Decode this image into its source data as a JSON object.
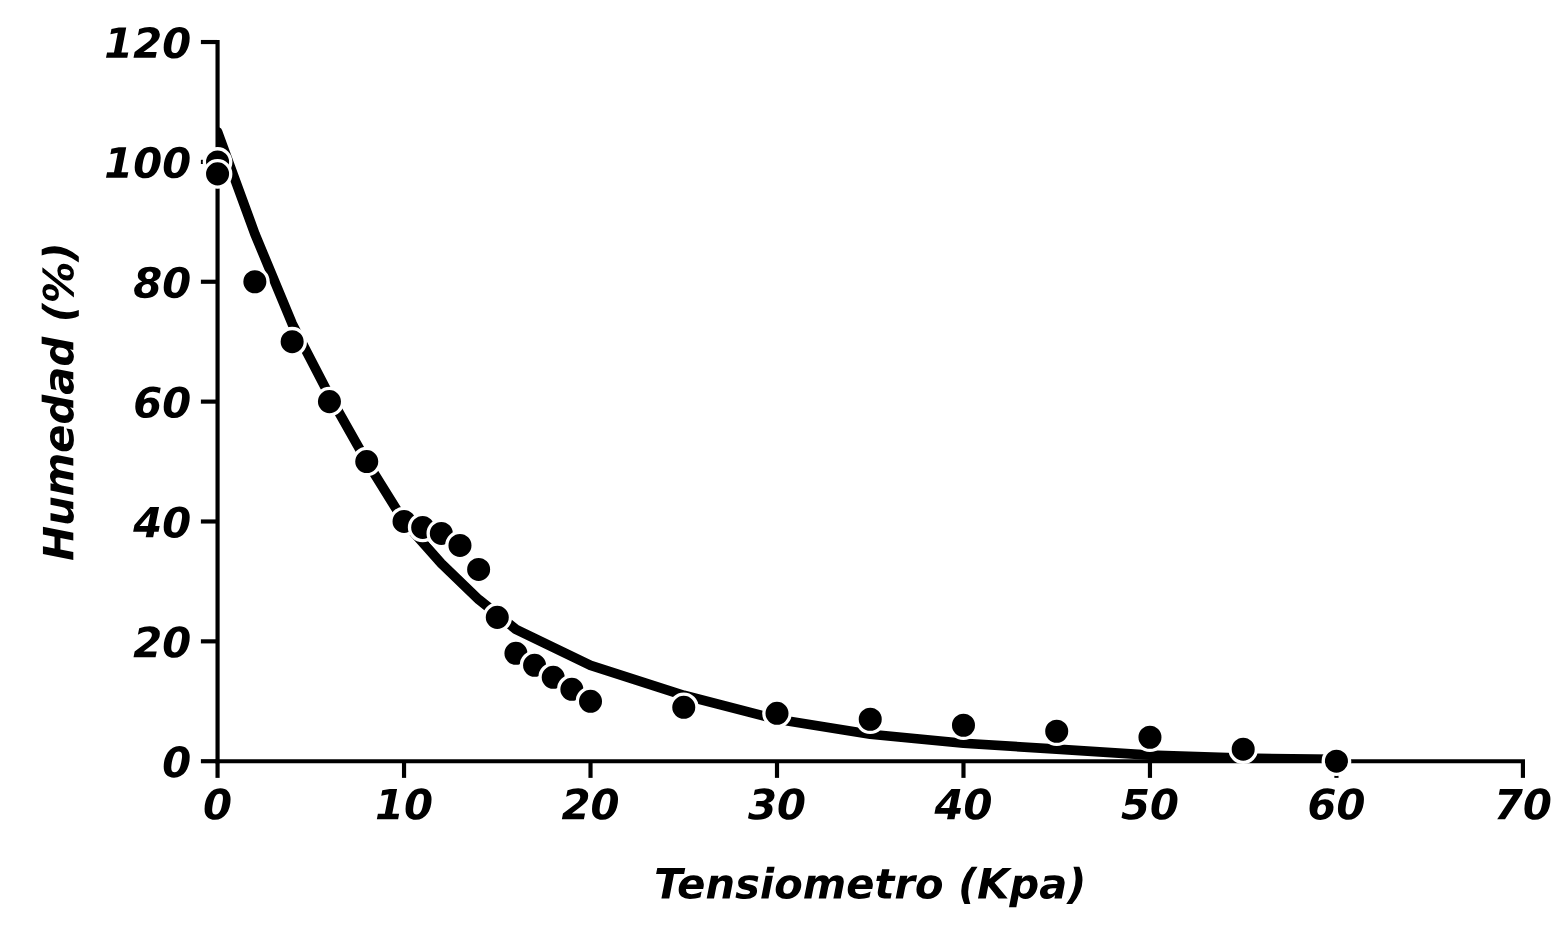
{
  "chart_data": {
    "type": "scatter",
    "xlabel": "Tensiometro (Kpa)",
    "ylabel": "Humedad (%)",
    "xlim": [
      0,
      70
    ],
    "xticks": [
      0,
      10,
      20,
      30,
      40,
      50,
      60,
      70
    ],
    "ylim": [
      0,
      120
    ],
    "yticks": [
      0,
      20,
      40,
      60,
      80,
      100,
      120
    ],
    "grid": false,
    "legend": false,
    "series": [
      {
        "type": "line",
        "color": "#000000",
        "marker": "none",
        "line_style": "solid",
        "x": [
          0,
          2,
          4,
          6,
          8,
          10,
          12,
          14,
          16,
          18,
          20,
          25,
          30,
          35,
          40,
          45,
          50,
          55,
          60
        ],
        "values": [
          105,
          88,
          73,
          61,
          50,
          40,
          33,
          27,
          22,
          19,
          16,
          11,
          7,
          4.5,
          3,
          2,
          1,
          0.5,
          0.3
        ]
      },
      {
        "color": "#000000",
        "marker": "circle",
        "x": [
          0,
          0,
          2,
          4,
          6,
          8,
          10,
          11,
          12,
          13,
          14,
          15,
          16,
          17,
          18,
          19,
          20,
          25,
          30,
          35,
          40,
          45,
          50,
          55,
          60
        ],
        "values": [
          100,
          98,
          80,
          70,
          60,
          50,
          40,
          39,
          38,
          36,
          32,
          24,
          18,
          16,
          14,
          12,
          10,
          9,
          8,
          7,
          6,
          5,
          4,
          2,
          0
        ]
      }
    ]
  }
}
